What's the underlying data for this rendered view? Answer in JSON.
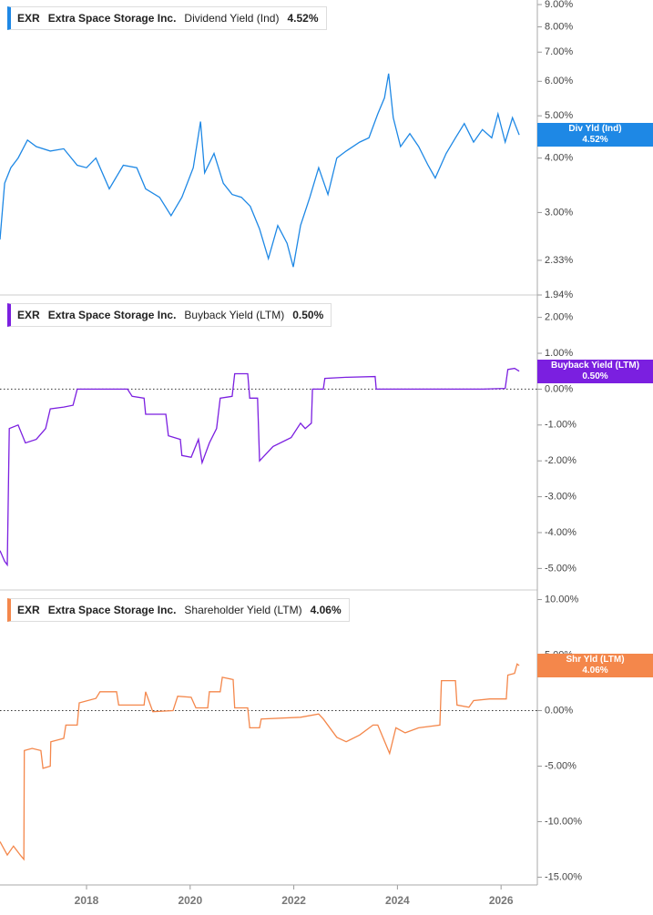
{
  "chart_data": [
    {
      "type": "line",
      "ticker": "EXR",
      "company": "Extra Space Storage Inc.",
      "title": "Dividend Yield (Ind)",
      "current": {
        "value": 4.52,
        "label": "4.52%"
      },
      "badge": "Div Yld (Ind)",
      "color": "#1e88e5",
      "log_scale": true,
      "ylim": [
        1.94,
        9.22
      ],
      "xlim": [
        2016.33,
        2026.7
      ],
      "yticks": [
        {
          "value": 1.94,
          "label": "1.94%"
        },
        {
          "value": 2.33,
          "label": "2.33%"
        },
        {
          "value": 3,
          "label": "3.00%"
        },
        {
          "value": 4,
          "label": "4.00%"
        },
        {
          "value": 5,
          "label": "5.00%"
        },
        {
          "value": 6,
          "label": "6.00%"
        },
        {
          "value": 7,
          "label": "7.00%"
        },
        {
          "value": 8,
          "label": "8.00%"
        },
        {
          "value": 9,
          "label": "9.00%"
        }
      ],
      "x": [
        2016.33,
        2016.42,
        2016.54,
        2016.68,
        2016.86,
        2017.03,
        2017.3,
        2017.56,
        2017.82,
        2018.0,
        2018.18,
        2018.44,
        2018.71,
        2018.97,
        2019.14,
        2019.41,
        2019.63,
        2019.84,
        2020.06,
        2020.2,
        2020.28,
        2020.46,
        2020.64,
        2020.81,
        2020.99,
        2021.16,
        2021.34,
        2021.51,
        2021.69,
        2021.87,
        2021.99,
        2022.13,
        2022.31,
        2022.48,
        2022.66,
        2022.83,
        2023.01,
        2023.27,
        2023.45,
        2023.62,
        2023.75,
        2023.83,
        2023.92,
        2024.06,
        2024.24,
        2024.41,
        2024.59,
        2024.73,
        2024.94,
        2025.12,
        2025.29,
        2025.47,
        2025.64,
        2025.82,
        2025.94,
        2026.08,
        2026.22,
        2026.35
      ],
      "values": [
        2.6,
        3.5,
        3.8,
        4.0,
        4.4,
        4.25,
        4.15,
        4.2,
        3.85,
        3.8,
        4.0,
        3.4,
        3.85,
        3.8,
        3.4,
        3.25,
        2.95,
        3.25,
        3.8,
        4.85,
        3.7,
        4.1,
        3.5,
        3.3,
        3.25,
        3.1,
        2.75,
        2.35,
        2.8,
        2.55,
        2.25,
        2.8,
        3.25,
        3.8,
        3.3,
        4.0,
        4.15,
        4.35,
        4.45,
        5.05,
        5.5,
        6.25,
        4.95,
        4.25,
        4.55,
        4.25,
        3.85,
        3.6,
        4.1,
        4.45,
        4.8,
        4.35,
        4.65,
        4.45,
        5.05,
        4.35,
        4.95,
        4.52
      ]
    },
    {
      "type": "line",
      "ticker": "EXR",
      "company": "Extra Space Storage Inc.",
      "title": "Buyback Yield (LTM)",
      "current": {
        "value": 0.5,
        "label": "0.50%"
      },
      "badge": "Buyback Yield (LTM)",
      "color": "#7b1fe0",
      "log_scale": false,
      "ylim": [
        -5.6,
        2.6
      ],
      "xlim": [
        2016.33,
        2026.7
      ],
      "hline": 0,
      "yticks": [
        {
          "value": -5,
          "label": "-5.00%"
        },
        {
          "value": -4,
          "label": "-4.00%"
        },
        {
          "value": -3,
          "label": "-3.00%"
        },
        {
          "value": -2,
          "label": "-2.00%"
        },
        {
          "value": -1,
          "label": "-1.00%"
        },
        {
          "value": 0,
          "label": "0.00%"
        },
        {
          "value": 1,
          "label": "1.00%"
        },
        {
          "value": 2,
          "label": "2.00%"
        }
      ],
      "x": [
        2016.33,
        2016.42,
        2016.47,
        2016.51,
        2016.68,
        2016.82,
        2017.03,
        2017.21,
        2017.3,
        2017.56,
        2017.74,
        2017.82,
        2018.09,
        2018.79,
        2018.88,
        2019.11,
        2019.14,
        2019.53,
        2019.58,
        2019.81,
        2019.84,
        2020.02,
        2020.16,
        2020.23,
        2020.37,
        2020.51,
        2020.58,
        2020.81,
        2020.86,
        2021.11,
        2021.15,
        2021.3,
        2021.34,
        2021.6,
        2021.95,
        2022.13,
        2022.22,
        2022.34,
        2022.36,
        2022.57,
        2022.6,
        2023.01,
        2023.57,
        2023.59,
        2025.64,
        2026.08,
        2026.13,
        2026.26,
        2026.35
      ],
      "values": [
        -4.5,
        -4.8,
        -4.9,
        -1.1,
        -1.0,
        -1.5,
        -1.4,
        -1.1,
        -0.55,
        -0.5,
        -0.45,
        0.0,
        0.0,
        0.0,
        -0.2,
        -0.25,
        -0.7,
        -0.7,
        -1.3,
        -1.4,
        -1.85,
        -1.9,
        -1.4,
        -2.05,
        -1.5,
        -1.1,
        -0.25,
        -0.2,
        0.43,
        0.43,
        -0.25,
        -0.25,
        -2.0,
        -1.6,
        -1.35,
        -0.95,
        -1.1,
        -0.95,
        0.0,
        0.0,
        0.3,
        0.33,
        0.35,
        0.0,
        0.0,
        0.02,
        0.55,
        0.58,
        0.5
      ]
    },
    {
      "type": "line",
      "ticker": "EXR",
      "company": "Extra Space Storage Inc.",
      "title": "Shareholder Yield (LTM)",
      "current": {
        "value": 4.06,
        "label": "4.06%"
      },
      "badge": "Shr Yld (LTM)",
      "color": "#f4874b",
      "log_scale": false,
      "ylim": [
        -15.7,
        10.7
      ],
      "xlim": [
        2016.33,
        2026.7
      ],
      "hline": 0,
      "yticks": [
        {
          "value": -15,
          "label": "-15.00%"
        },
        {
          "value": -10,
          "label": "-10.00%"
        },
        {
          "value": -5,
          "label": "-5.00%"
        },
        {
          "value": 0,
          "label": "0.00%"
        },
        {
          "value": 5,
          "label": "5.00%"
        },
        {
          "value": 10,
          "label": "10.00%"
        }
      ],
      "xticks": [
        2018,
        2020,
        2022,
        2024,
        2026
      ],
      "x": [
        2016.33,
        2016.47,
        2016.59,
        2016.72,
        2016.79,
        2016.8,
        2016.95,
        2017.12,
        2017.16,
        2017.3,
        2017.31,
        2017.56,
        2017.6,
        2017.82,
        2017.86,
        2018.18,
        2018.26,
        2018.58,
        2018.62,
        2019.11,
        2019.14,
        2019.28,
        2019.67,
        2019.76,
        2020.02,
        2020.11,
        2020.34,
        2020.37,
        2020.58,
        2020.62,
        2020.83,
        2020.86,
        2021.11,
        2021.15,
        2021.34,
        2021.37,
        2022.13,
        2022.48,
        2022.57,
        2022.83,
        2023.01,
        2023.27,
        2023.53,
        2023.62,
        2023.85,
        2023.97,
        2024.15,
        2024.41,
        2024.82,
        2024.85,
        2025.12,
        2025.15,
        2025.38,
        2025.47,
        2025.78,
        2026.1,
        2026.13,
        2026.26,
        2026.31,
        2026.35
      ],
      "values": [
        -11.8,
        -13.0,
        -12.2,
        -13.0,
        -13.4,
        -3.6,
        -3.4,
        -3.6,
        -5.2,
        -5.0,
        -2.8,
        -2.5,
        -1.3,
        -1.3,
        0.7,
        1.1,
        1.7,
        1.7,
        0.5,
        0.5,
        1.7,
        -0.1,
        0.0,
        1.3,
        1.2,
        0.25,
        0.25,
        1.7,
        1.7,
        3.0,
        2.8,
        0.25,
        0.25,
        -1.55,
        -1.55,
        -0.75,
        -0.6,
        -0.3,
        -0.75,
        -2.4,
        -2.8,
        -2.2,
        -1.3,
        -1.3,
        -3.85,
        -1.55,
        -2.0,
        -1.55,
        -1.3,
        2.7,
        2.7,
        0.5,
        0.3,
        0.9,
        1.05,
        1.05,
        3.2,
        3.35,
        4.2,
        4.06
      ]
    }
  ]
}
